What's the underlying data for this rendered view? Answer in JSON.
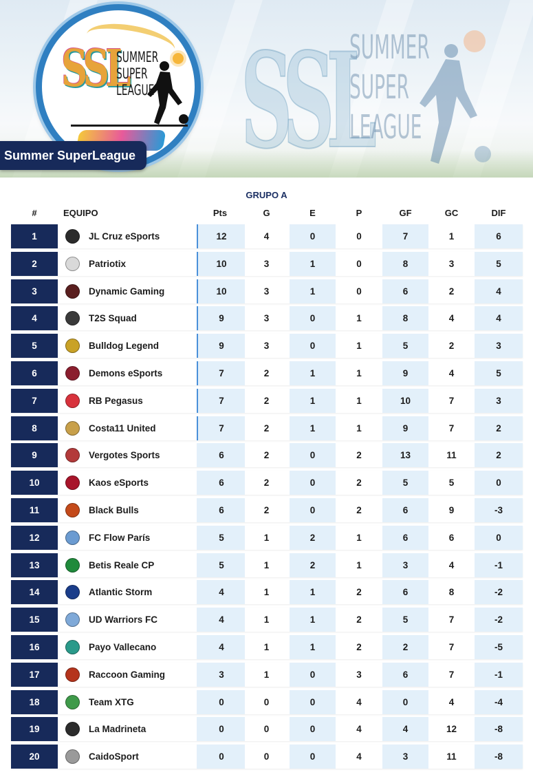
{
  "header": {
    "title_badge": "Summer SuperLeague",
    "logo": {
      "initials": "SSL",
      "words": [
        "SUMMER",
        "SUPER",
        "LEAGUE"
      ]
    }
  },
  "table": {
    "group_title": "GRUPO A",
    "columns": [
      "#",
      "EQUIPO",
      "Pts",
      "G",
      "E",
      "P",
      "GF",
      "GC",
      "DIF"
    ],
    "accent_color": "#172a5a",
    "stripe_color": "#e3f0fa",
    "qualified_marker_color": "#4a90d9",
    "rows": [
      {
        "pos": "1",
        "team": "JL Cruz eSports",
        "pts": "12",
        "g": "4",
        "e": "0",
        "p": "0",
        "gf": "7",
        "gc": "1",
        "dif": "6",
        "qualified": true,
        "crest": "#2b2b2b"
      },
      {
        "pos": "2",
        "team": "Patriotix",
        "pts": "10",
        "g": "3",
        "e": "1",
        "p": "0",
        "gf": "8",
        "gc": "3",
        "dif": "5",
        "qualified": true,
        "crest": "#d9d9d9"
      },
      {
        "pos": "3",
        "team": "Dynamic Gaming",
        "pts": "10",
        "g": "3",
        "e": "1",
        "p": "0",
        "gf": "6",
        "gc": "2",
        "dif": "4",
        "qualified": true,
        "crest": "#5a1f1f"
      },
      {
        "pos": "4",
        "team": "T2S Squad",
        "pts": "9",
        "g": "3",
        "e": "0",
        "p": "1",
        "gf": "8",
        "gc": "4",
        "dif": "4",
        "qualified": true,
        "crest": "#3a3a3a"
      },
      {
        "pos": "5",
        "team": "Bulldog Legend",
        "pts": "9",
        "g": "3",
        "e": "0",
        "p": "1",
        "gf": "5",
        "gc": "2",
        "dif": "3",
        "qualified": true,
        "crest": "#c9a227"
      },
      {
        "pos": "6",
        "team": "Demons eSports",
        "pts": "7",
        "g": "2",
        "e": "1",
        "p": "1",
        "gf": "9",
        "gc": "4",
        "dif": "5",
        "qualified": true,
        "crest": "#8b1e2e"
      },
      {
        "pos": "7",
        "team": "RB Pegasus",
        "pts": "7",
        "g": "2",
        "e": "1",
        "p": "1",
        "gf": "10",
        "gc": "7",
        "dif": "3",
        "qualified": true,
        "crest": "#d8323c"
      },
      {
        "pos": "8",
        "team": "Costa11 United",
        "pts": "7",
        "g": "2",
        "e": "1",
        "p": "1",
        "gf": "9",
        "gc": "7",
        "dif": "2",
        "qualified": true,
        "crest": "#c8a04a"
      },
      {
        "pos": "9",
        "team": "Vergotes Sports",
        "pts": "6",
        "g": "2",
        "e": "0",
        "p": "2",
        "gf": "13",
        "gc": "11",
        "dif": "2",
        "qualified": false,
        "crest": "#b33a3a"
      },
      {
        "pos": "10",
        "team": "Kaos eSports",
        "pts": "6",
        "g": "2",
        "e": "0",
        "p": "2",
        "gf": "5",
        "gc": "5",
        "dif": "0",
        "qualified": false,
        "crest": "#a8142a"
      },
      {
        "pos": "11",
        "team": "Black Bulls",
        "pts": "6",
        "g": "2",
        "e": "0",
        "p": "2",
        "gf": "6",
        "gc": "9",
        "dif": "-3",
        "qualified": false,
        "crest": "#c44a1a"
      },
      {
        "pos": "12",
        "team": "FC Flow París",
        "pts": "5",
        "g": "1",
        "e": "2",
        "p": "1",
        "gf": "6",
        "gc": "6",
        "dif": "0",
        "qualified": false,
        "crest": "#6b9bd1"
      },
      {
        "pos": "13",
        "team": "Betis Reale CP",
        "pts": "5",
        "g": "1",
        "e": "2",
        "p": "1",
        "gf": "3",
        "gc": "4",
        "dif": "-1",
        "qualified": false,
        "crest": "#1f8a3b"
      },
      {
        "pos": "14",
        "team": "Atlantic Storm",
        "pts": "4",
        "g": "1",
        "e": "1",
        "p": "2",
        "gf": "6",
        "gc": "8",
        "dif": "-2",
        "qualified": false,
        "crest": "#1a3d8a"
      },
      {
        "pos": "15",
        "team": "UD Warriors FC",
        "pts": "4",
        "g": "1",
        "e": "1",
        "p": "2",
        "gf": "5",
        "gc": "7",
        "dif": "-2",
        "qualified": false,
        "crest": "#7fa9d8"
      },
      {
        "pos": "16",
        "team": "Payo Vallecano",
        "pts": "4",
        "g": "1",
        "e": "1",
        "p": "2",
        "gf": "2",
        "gc": "7",
        "dif": "-5",
        "qualified": false,
        "crest": "#2a9a8a"
      },
      {
        "pos": "17",
        "team": "Raccoon Gaming",
        "pts": "3",
        "g": "1",
        "e": "0",
        "p": "3",
        "gf": "6",
        "gc": "7",
        "dif": "-1",
        "qualified": false,
        "crest": "#b5341c"
      },
      {
        "pos": "18",
        "team": "Team XTG",
        "pts": "0",
        "g": "0",
        "e": "0",
        "p": "4",
        "gf": "0",
        "gc": "4",
        "dif": "-4",
        "qualified": false,
        "crest": "#3f9a4a"
      },
      {
        "pos": "19",
        "team": "La Madrineta",
        "pts": "0",
        "g": "0",
        "e": "0",
        "p": "4",
        "gf": "4",
        "gc": "12",
        "dif": "-8",
        "qualified": false,
        "crest": "#2c2c2c"
      },
      {
        "pos": "20",
        "team": "CaidoSport",
        "pts": "0",
        "g": "0",
        "e": "0",
        "p": "4",
        "gf": "3",
        "gc": "11",
        "dif": "-8",
        "qualified": false,
        "crest": "#9a9a9a"
      }
    ]
  }
}
